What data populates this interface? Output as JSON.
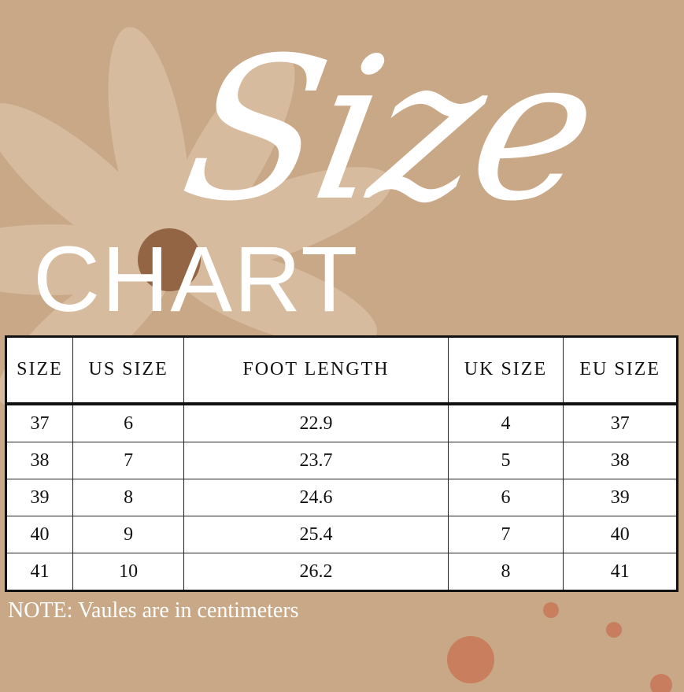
{
  "title": {
    "script": "Size",
    "block": "CHART"
  },
  "table": {
    "headers": [
      "SIZE",
      "US SIZE",
      "FOOT LENGTH",
      "UK SIZE",
      "EU SIZE"
    ],
    "rows": [
      [
        "37",
        "6",
        "22.9",
        "4",
        "37"
      ],
      [
        "38",
        "7",
        "23.7",
        "5",
        "38"
      ],
      [
        "39",
        "8",
        "24.6",
        "6",
        "39"
      ],
      [
        "40",
        "9",
        "25.4",
        "7",
        "40"
      ],
      [
        "41",
        "10",
        "26.2",
        "8",
        "41"
      ]
    ]
  },
  "note": "NOTE: Vaules are in centimeters",
  "colors": {
    "background": "#c8a886",
    "text_light": "#ffffff",
    "table_border": "#111111"
  }
}
